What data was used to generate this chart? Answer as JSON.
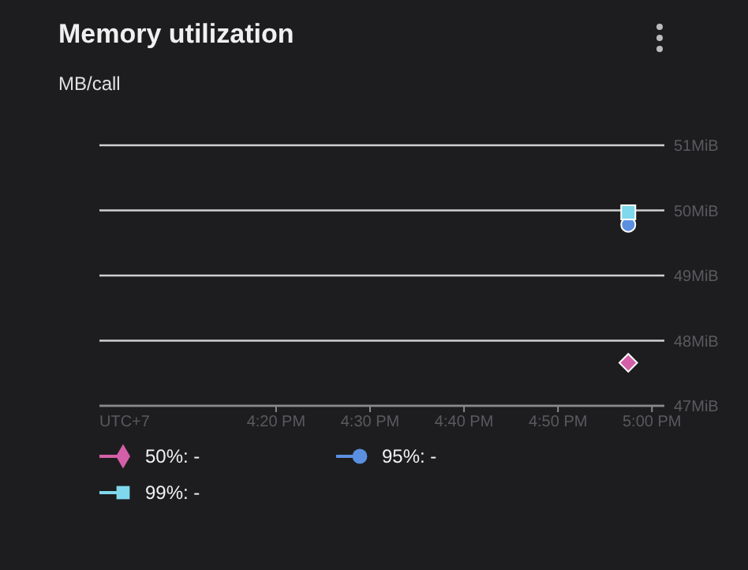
{
  "chart_data": {
    "type": "line",
    "title": "Memory utilization",
    "ylabel": "MB/call",
    "annotations": [
      "UTC+7"
    ],
    "xlim": [
      16.02,
      17.022
    ],
    "xticks": [
      {
        "value": 16.3333,
        "label": "4:20 PM"
      },
      {
        "value": 16.5,
        "label": "4:30 PM"
      },
      {
        "value": 16.6667,
        "label": "4:40 PM"
      },
      {
        "value": 16.8333,
        "label": "4:50 PM"
      },
      {
        "value": 17,
        "label": "5:00 PM"
      }
    ],
    "ylim": [
      47,
      51
    ],
    "yticks": [
      {
        "value": 47,
        "label": "47MiB"
      },
      {
        "value": 48,
        "label": "48MiB"
      },
      {
        "value": 49,
        "label": "49MiB"
      },
      {
        "value": 50,
        "label": "50MiB"
      },
      {
        "value": 51,
        "label": "51MiB"
      }
    ],
    "grid": "y",
    "legend": "bottom",
    "x": [
      16.958
    ],
    "series": [
      {
        "name": "50%: -",
        "color": "#d35fa8",
        "marker": "diamond",
        "values": [
          47.66
        ]
      },
      {
        "name": "95%: -",
        "color": "#5b8fe0",
        "marker": "circle",
        "values": [
          49.78
        ]
      },
      {
        "name": "99%: -",
        "color": "#7fd8ec",
        "marker": "square",
        "values": [
          49.97
        ]
      }
    ]
  }
}
